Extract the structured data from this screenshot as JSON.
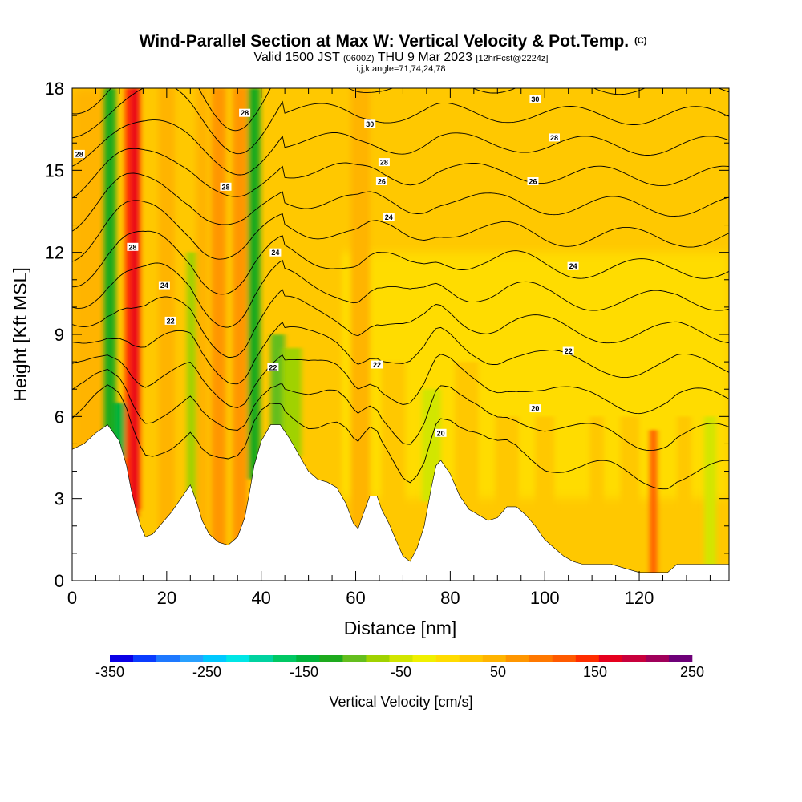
{
  "chart_data": {
    "type": "heatmap",
    "title": "Wind-Parallel Section at Max W: Vertical Velocity & Pot.Temp.",
    "title_mark": "(C)",
    "subtitle": {
      "prefix": "Valid 1500 JST",
      "utc": "(0600Z)",
      "date": "THU 9 Mar 2023",
      "forecast": "[12hrFcst@2224z]"
    },
    "subtitle2": "i,j,k,angle=71,74,24,78",
    "xlabel": "Distance [nm]",
    "ylabel": "Height [Kft MSL]",
    "xlim": [
      0,
      139
    ],
    "ylim": [
      0,
      18
    ],
    "x_ticks": [
      0,
      20,
      40,
      60,
      80,
      100,
      120
    ],
    "y_ticks": [
      0,
      3,
      6,
      9,
      12,
      15,
      18
    ],
    "colorbar": {
      "label": "Vertical Velocity [cm/s]",
      "range": [
        -350,
        250
      ],
      "step": 25,
      "tick_values": [
        -350,
        -250,
        -150,
        -50,
        50,
        150,
        250
      ],
      "tick_labels": [
        "-350",
        "-250",
        "-150",
        "-50",
        "50",
        "150",
        "250"
      ],
      "colors": [
        "#0a00e6",
        "#0a3cff",
        "#1e78ff",
        "#28a0ff",
        "#00c8ff",
        "#00e6e6",
        "#00d2a0",
        "#00c864",
        "#00b43c",
        "#1eaa1e",
        "#64be1e",
        "#a0d200",
        "#d2e600",
        "#f0f000",
        "#ffdc00",
        "#ffc800",
        "#ffb400",
        "#ff9600",
        "#ff7800",
        "#ff5a00",
        "#ff2d00",
        "#e6001e",
        "#c8003c",
        "#a0005a",
        "#6e0078"
      ]
    },
    "terrain": {
      "x": [
        0,
        2.5,
        5,
        7.5,
        10,
        11.5,
        12.5,
        13.5,
        14.5,
        15.5,
        17,
        19,
        21,
        23,
        25,
        26.5,
        27.5,
        29,
        31,
        33,
        35,
        36.5,
        37.5,
        38.5,
        40,
        42,
        44,
        46,
        48,
        50,
        52,
        54,
        56,
        58,
        59.5,
        60.5,
        61.5,
        63,
        64.5,
        65.5,
        67,
        68.5,
        70,
        71.5,
        73,
        74.5,
        76,
        77,
        78,
        80,
        82,
        84,
        86,
        88,
        90,
        92,
        94,
        96,
        98,
        100,
        102,
        104,
        106,
        108,
        110,
        112,
        114,
        116,
        118,
        120,
        122,
        124,
        126,
        128,
        130,
        132,
        134,
        136,
        139
      ],
      "height": [
        4.8,
        5.0,
        5.4,
        5.7,
        5.1,
        4.2,
        3.3,
        2.6,
        2.0,
        1.6,
        1.7,
        2.1,
        2.5,
        3.0,
        3.5,
        2.8,
        2.2,
        1.7,
        1.4,
        1.3,
        1.6,
        2.3,
        3.2,
        4.2,
        5.1,
        5.7,
        5.7,
        5.2,
        4.6,
        4.0,
        3.7,
        3.6,
        3.4,
        2.8,
        2.1,
        1.9,
        2.4,
        3.1,
        3.1,
        2.6,
        2.1,
        1.5,
        0.9,
        0.7,
        1.2,
        2.0,
        3.4,
        4.2,
        4.4,
        3.9,
        3.1,
        2.6,
        2.4,
        2.2,
        2.3,
        2.7,
        2.7,
        2.4,
        2.0,
        1.5,
        1.2,
        0.9,
        0.7,
        0.6,
        0.6,
        0.6,
        0.6,
        0.5,
        0.4,
        0.3,
        0.3,
        0.3,
        0.3,
        0.6,
        0.6,
        0.6,
        0.6,
        0.6,
        0.6
      ]
    },
    "vertical_velocity_bands": [
      {
        "x": 8,
        "width": 2.5,
        "top": 18,
        "value": -110
      },
      {
        "x": 10.2,
        "width": 2.2,
        "top": 6.5,
        "value": -150
      },
      {
        "x": 12.8,
        "width": 3.2,
        "top": 18,
        "value": 160
      },
      {
        "x": 13.2,
        "width": 1.4,
        "top": 18,
        "value": 185
      },
      {
        "x": 20,
        "width": 3.5,
        "top": 18,
        "value": 60
      },
      {
        "x": 25.5,
        "width": 2.5,
        "top": 12,
        "value": -60
      },
      {
        "x": 27.5,
        "width": 2.5,
        "top": 18,
        "value": 70
      },
      {
        "x": 31,
        "width": 3,
        "top": 18,
        "value": 90
      },
      {
        "x": 35.5,
        "width": 3,
        "top": 18,
        "value": 95
      },
      {
        "x": 38.5,
        "width": 2.6,
        "top": 18,
        "value": -105
      },
      {
        "x": 43.5,
        "width": 3,
        "top": 9,
        "value": -85
      },
      {
        "x": 46.5,
        "width": 4,
        "top": 8.5,
        "value": -60
      },
      {
        "x": 55,
        "width": 4,
        "top": 18,
        "value": 45
      },
      {
        "x": 61,
        "width": 4,
        "top": 18,
        "value": 55
      },
      {
        "x": 68,
        "width": 5,
        "top": 8,
        "value": 40
      },
      {
        "x": 76,
        "width": 4,
        "top": 7,
        "value": -40
      },
      {
        "x": 83.5,
        "width": 5,
        "top": 8,
        "value": 40
      },
      {
        "x": 92,
        "width": 5,
        "top": 6,
        "value": 40
      },
      {
        "x": 100,
        "width": 4,
        "top": 6,
        "value": 45
      },
      {
        "x": 111,
        "width": 3,
        "top": 6,
        "value": 40
      },
      {
        "x": 118,
        "width": 4,
        "top": 6,
        "value": 40
      },
      {
        "x": 123,
        "width": 1.5,
        "top": 5.5,
        "value": 130
      },
      {
        "x": 129.5,
        "width": 3,
        "top": 6,
        "value": 35
      },
      {
        "x": 135,
        "width": 2.5,
        "top": 6,
        "value": -40
      }
    ],
    "theta_contour_levels": [
      18,
      19,
      20,
      21,
      22,
      23,
      24,
      25,
      26,
      27,
      28,
      29,
      30
    ],
    "theta_contour_labels": [
      {
        "text": "28",
        "x": 1.5,
        "y": 15.6
      },
      {
        "text": "28",
        "x": 12.8,
        "y": 12.2
      },
      {
        "text": "24",
        "x": 19.5,
        "y": 10.8
      },
      {
        "text": "22",
        "x": 20.8,
        "y": 9.5
      },
      {
        "text": "28",
        "x": 32.5,
        "y": 14.4
      },
      {
        "text": "28",
        "x": 36.5,
        "y": 17.1
      },
      {
        "text": "24",
        "x": 43,
        "y": 12.0
      },
      {
        "text": "22",
        "x": 42.5,
        "y": 7.8
      },
      {
        "text": "30",
        "x": 63,
        "y": 16.7
      },
      {
        "text": "28",
        "x": 66,
        "y": 15.3
      },
      {
        "text": "26",
        "x": 65.5,
        "y": 14.6
      },
      {
        "text": "24",
        "x": 67,
        "y": 13.3
      },
      {
        "text": "22",
        "x": 64.5,
        "y": 7.9
      },
      {
        "text": "20",
        "x": 78,
        "y": 5.4
      },
      {
        "text": "30",
        "x": 98,
        "y": 17.6
      },
      {
        "text": "28",
        "x": 102,
        "y": 16.2
      },
      {
        "text": "26",
        "x": 97.5,
        "y": 14.6
      },
      {
        "text": "24",
        "x": 106,
        "y": 11.5
      },
      {
        "text": "22",
        "x": 105,
        "y": 8.4
      },
      {
        "text": "20",
        "x": 98,
        "y": 6.3
      }
    ]
  }
}
